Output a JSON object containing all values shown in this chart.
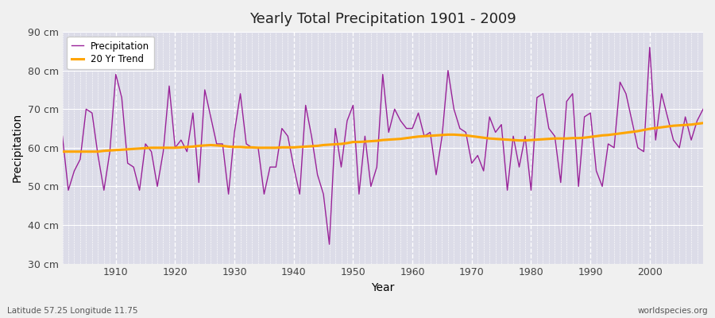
{
  "title": "Yearly Total Precipitation 1901 - 2009",
  "xlabel": "Year",
  "ylabel": "Precipitation",
  "subtitle_left": "Latitude 57.25 Longitude 11.75",
  "subtitle_right": "worldspecies.org",
  "ylim": [
    30,
    90
  ],
  "yticks": [
    30,
    40,
    50,
    60,
    70,
    80,
    90
  ],
  "ytick_labels": [
    "30 cm",
    "40 cm",
    "50 cm",
    "60 cm",
    "70 cm",
    "80 cm",
    "90 cm"
  ],
  "xlim": [
    1901,
    2009
  ],
  "xticks": [
    1910,
    1920,
    1930,
    1940,
    1950,
    1960,
    1970,
    1980,
    1990,
    2000
  ],
  "precip_color": "#992299",
  "trend_color": "#FFA500",
  "fig_bg_color": "#f0f0f0",
  "plot_bg_color": "#dcdce8",
  "grid_color": "#ffffff",
  "years": [
    1901,
    1902,
    1903,
    1904,
    1905,
    1906,
    1907,
    1908,
    1909,
    1910,
    1911,
    1912,
    1913,
    1914,
    1915,
    1916,
    1917,
    1918,
    1919,
    1920,
    1921,
    1922,
    1923,
    1924,
    1925,
    1926,
    1927,
    1928,
    1929,
    1930,
    1931,
    1932,
    1933,
    1934,
    1935,
    1936,
    1937,
    1938,
    1939,
    1940,
    1941,
    1942,
    1943,
    1944,
    1945,
    1946,
    1947,
    1948,
    1949,
    1950,
    1951,
    1952,
    1953,
    1954,
    1955,
    1956,
    1957,
    1958,
    1959,
    1960,
    1961,
    1962,
    1963,
    1964,
    1965,
    1966,
    1967,
    1968,
    1969,
    1970,
    1971,
    1972,
    1973,
    1974,
    1975,
    1976,
    1977,
    1978,
    1979,
    1980,
    1981,
    1982,
    1983,
    1984,
    1985,
    1986,
    1987,
    1988,
    1989,
    1990,
    1991,
    1992,
    1993,
    1994,
    1995,
    1996,
    1997,
    1998,
    1999,
    2000,
    2001,
    2002,
    2003,
    2004,
    2005,
    2006,
    2007,
    2008,
    2009
  ],
  "precipitation": [
    63,
    49,
    54,
    57,
    70,
    69,
    58,
    49,
    59,
    79,
    73,
    56,
    55,
    49,
    61,
    59,
    50,
    59,
    76,
    60,
    62,
    59,
    69,
    51,
    75,
    68,
    61,
    61,
    48,
    64,
    74,
    61,
    60,
    60,
    48,
    55,
    55,
    65,
    63,
    55,
    48,
    71,
    63,
    53,
    48,
    35,
    65,
    55,
    67,
    71,
    48,
    63,
    50,
    55,
    79,
    64,
    70,
    67,
    65,
    65,
    69,
    63,
    64,
    53,
    63,
    80,
    70,
    65,
    64,
    56,
    58,
    54,
    68,
    64,
    66,
    49,
    63,
    55,
    63,
    49,
    73,
    74,
    65,
    63,
    51,
    72,
    74,
    50,
    68,
    69,
    54,
    50,
    61,
    60,
    77,
    74,
    67,
    60,
    59,
    86,
    62,
    74,
    68,
    62,
    60,
    68,
    62,
    67,
    70
  ],
  "trend": [
    59.0,
    59.0,
    59.0,
    59.0,
    59.0,
    59.0,
    59.0,
    59.2,
    59.3,
    59.4,
    59.5,
    59.6,
    59.7,
    59.8,
    59.9,
    60.0,
    60.0,
    60.0,
    60.0,
    60.0,
    60.1,
    60.2,
    60.3,
    60.5,
    60.6,
    60.7,
    60.6,
    60.5,
    60.3,
    60.2,
    60.2,
    60.1,
    60.1,
    60.0,
    60.0,
    60.0,
    60.0,
    60.1,
    60.1,
    60.1,
    60.2,
    60.3,
    60.4,
    60.5,
    60.7,
    60.8,
    60.9,
    61.0,
    61.2,
    61.5,
    61.5,
    61.6,
    61.7,
    61.8,
    62.0,
    62.1,
    62.2,
    62.3,
    62.5,
    62.7,
    62.9,
    63.0,
    63.1,
    63.2,
    63.3,
    63.4,
    63.4,
    63.3,
    63.2,
    63.0,
    62.8,
    62.6,
    62.4,
    62.3,
    62.2,
    62.1,
    62.0,
    61.9,
    61.9,
    62.0,
    62.1,
    62.2,
    62.3,
    62.4,
    62.4,
    62.4,
    62.5,
    62.5,
    62.6,
    62.8,
    63.0,
    63.2,
    63.3,
    63.5,
    63.7,
    63.9,
    64.1,
    64.3,
    64.6,
    64.9,
    65.1,
    65.3,
    65.5,
    65.7,
    65.8,
    65.9,
    66.0,
    66.2,
    66.4
  ]
}
